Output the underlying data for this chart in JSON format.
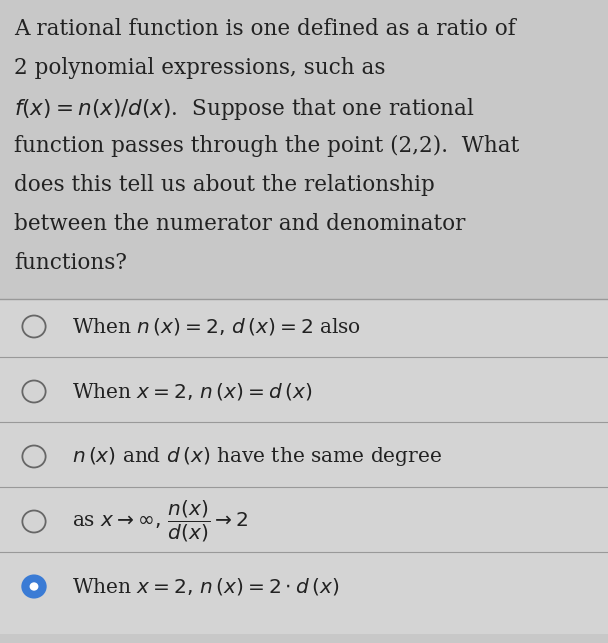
{
  "background_color": "#c8c8c8",
  "question_bg": "#c8c8c8",
  "answer_bg": "#d4d4d4",
  "question_text_lines": [
    "A rational function is one defined as a ratio of",
    "2 polynomial expressions, such as",
    "$f(x) = n(x)/d(x)$.  Suppose that one rational",
    "function passes through the point (2,2).  What",
    "does this tell us about the relationship",
    "between the numerator and denominator",
    "functions?"
  ],
  "options": [
    {
      "text": "When $n\\,(x) = 2,\\,d\\,(x) = 2$ also",
      "selected": false
    },
    {
      "text": "When $x = 2,\\,n\\,(x) = d\\,(x)$",
      "selected": false
    },
    {
      "text": "$n\\,(x)$ and $d\\,(x)$ have the same degree",
      "selected": false
    },
    {
      "text": "as $x \\rightarrow \\infty,\\,\\dfrac{n(x)}{d(x)} \\rightarrow 2$",
      "selected": false
    },
    {
      "text": "When $x = 2,\\,n\\,(x) = 2 \\cdot d\\,(x)$",
      "selected": true
    }
  ],
  "selected_color": "#3a7bd5",
  "text_color": "#222222",
  "font_size_question": 15.5,
  "font_size_options": 14.5,
  "separator_color": "#999999",
  "fig_width": 6.08,
  "fig_height": 6.43,
  "dpi": 100
}
